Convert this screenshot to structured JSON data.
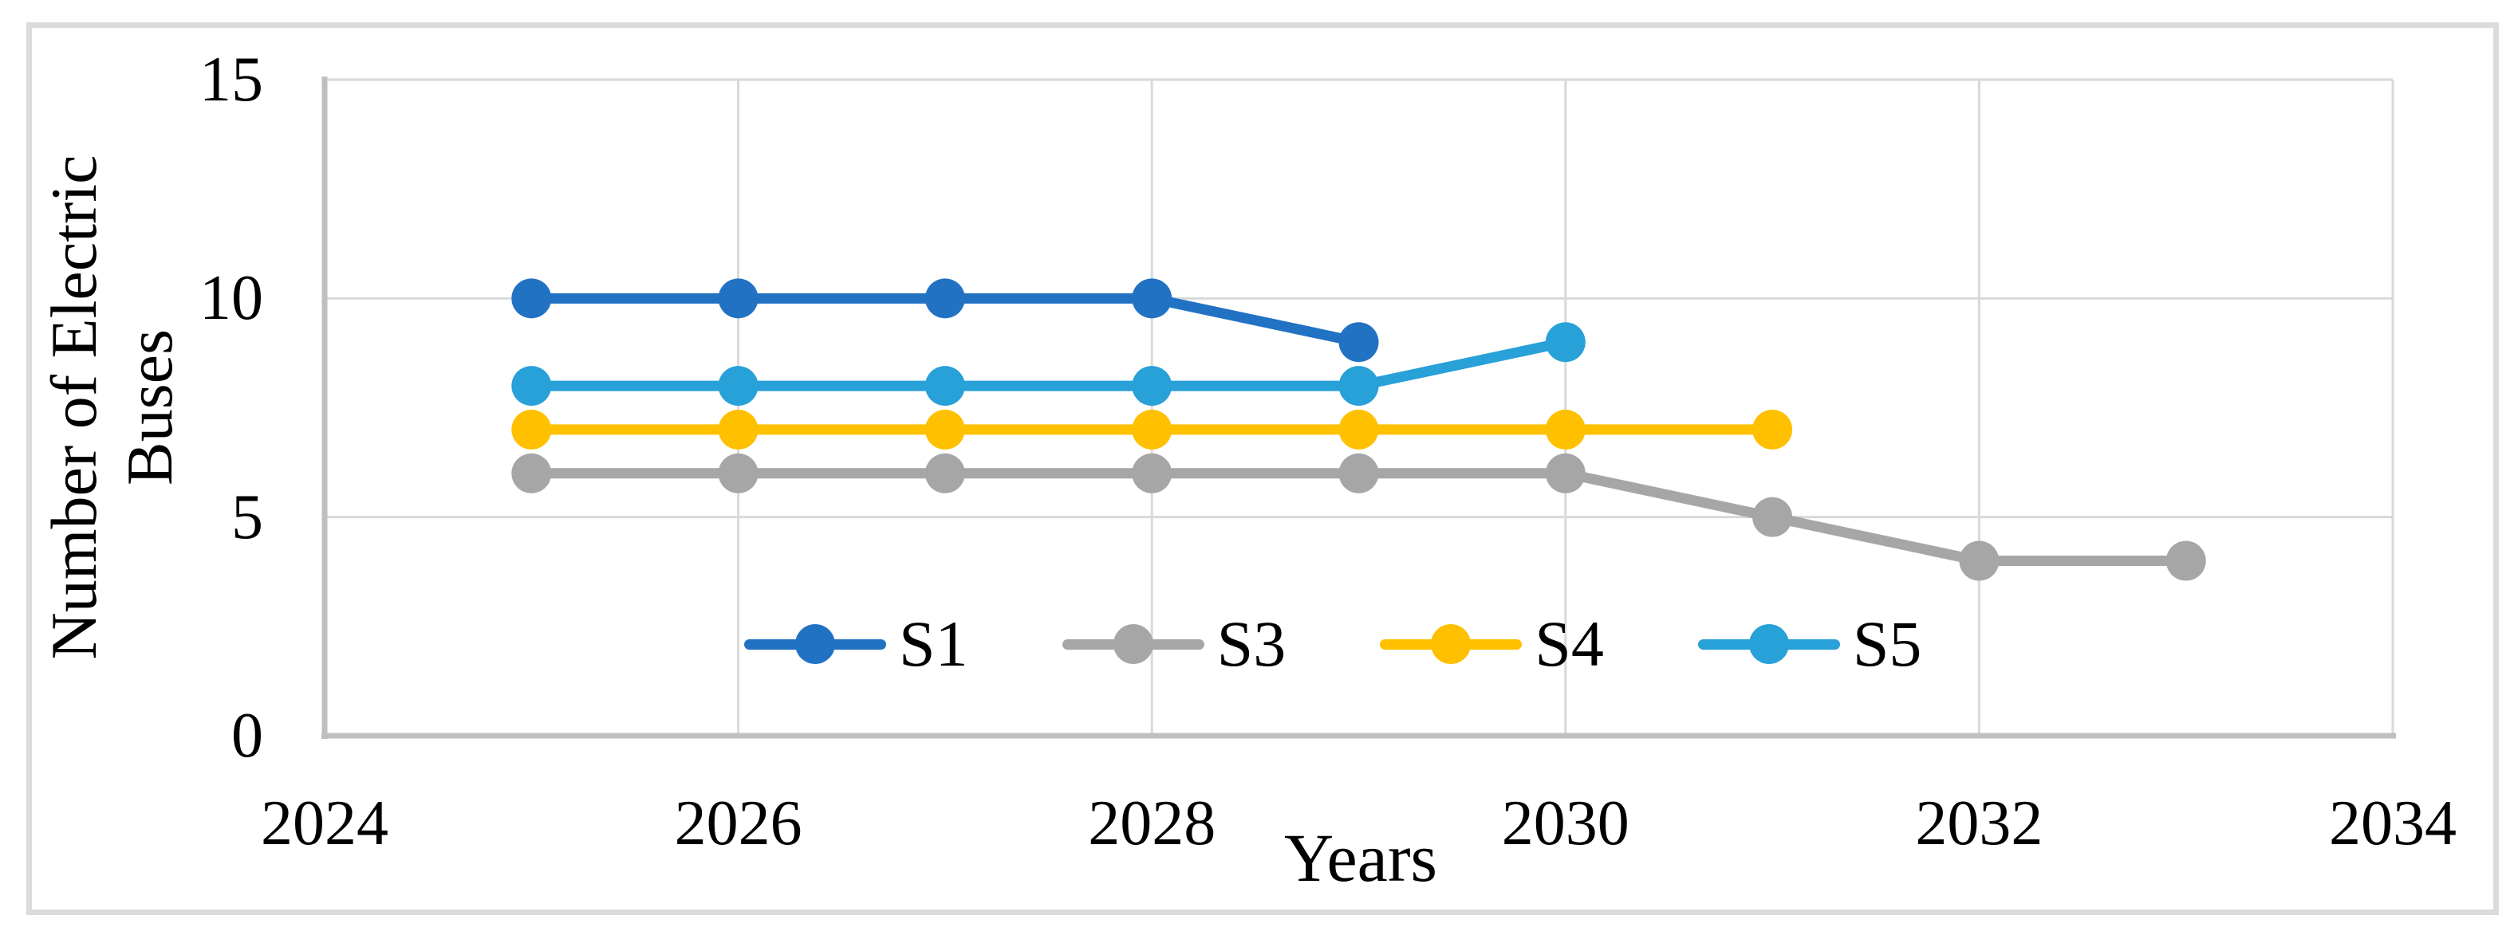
{
  "figure": {
    "x_axis_title": "Years",
    "y_axis_title": "Number of Electric Buses"
  },
  "chart_data": {
    "type": "line",
    "title": "",
    "xlabel": "Years",
    "ylabel": "Number of Electric Buses",
    "xlim": [
      2024,
      2034
    ],
    "ylim": [
      0,
      15
    ],
    "xticks": [
      2024,
      2026,
      2028,
      2030,
      2032,
      2034
    ],
    "yticks": [
      0,
      5,
      10,
      15
    ],
    "grid": true,
    "legend_position": "inside-bottom-center",
    "colors": {
      "gridline": "#d9d9d9",
      "axis_line": "#bfbfbf",
      "figure_border": "#dbdbdb",
      "text": "#000000"
    },
    "series": [
      {
        "name": "S1",
        "color": "#2272c4",
        "points": [
          [
            2025,
            10
          ],
          [
            2026,
            10
          ],
          [
            2027,
            10
          ],
          [
            2028,
            10
          ],
          [
            2029,
            9
          ]
        ]
      },
      {
        "name": "S3",
        "color": "#a6a6a6",
        "points": [
          [
            2025,
            6
          ],
          [
            2026,
            6
          ],
          [
            2027,
            6
          ],
          [
            2028,
            6
          ],
          [
            2029,
            6
          ],
          [
            2030,
            6
          ],
          [
            2031,
            5
          ],
          [
            2032,
            4
          ],
          [
            2033,
            4
          ]
        ]
      },
      {
        "name": "S4",
        "color": "#ffc000",
        "points": [
          [
            2025,
            7
          ],
          [
            2026,
            7
          ],
          [
            2027,
            7
          ],
          [
            2028,
            7
          ],
          [
            2029,
            7
          ],
          [
            2030,
            7
          ],
          [
            2031,
            7
          ]
        ]
      },
      {
        "name": "S5",
        "color": "#28a0d8",
        "points": [
          [
            2025,
            8
          ],
          [
            2026,
            8
          ],
          [
            2027,
            8
          ],
          [
            2028,
            8
          ],
          [
            2029,
            8
          ],
          [
            2030,
            9
          ]
        ]
      }
    ]
  }
}
